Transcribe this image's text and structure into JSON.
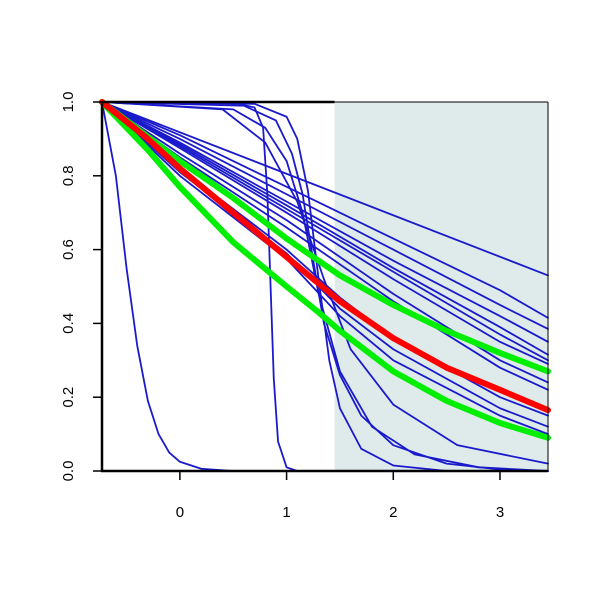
{
  "chart_data": {
    "type": "line",
    "title": "",
    "xlabel": "",
    "ylabel": "",
    "xlim": [
      -0.73,
      3.45
    ],
    "ylim": [
      0,
      1
    ],
    "x_ticks": [
      {
        "value": 0,
        "label": "0"
      },
      {
        "value": 1,
        "label": "1"
      },
      {
        "value": 2,
        "label": "2"
      },
      {
        "value": 3,
        "label": "3"
      }
    ],
    "y_ticks": [
      {
        "value": 0,
        "label": "0.0"
      },
      {
        "value": 0.2,
        "label": "0.2"
      },
      {
        "value": 0.4,
        "label": "0.4"
      },
      {
        "value": 0.6,
        "label": "0.6"
      },
      {
        "value": 0.8,
        "label": "0.8"
      },
      {
        "value": 1,
        "label": "1.0"
      }
    ],
    "shaded_region": {
      "x_from": 1.45,
      "x_to": 3.45,
      "color": "#dfebeb"
    },
    "colors": {
      "thin": "#1a1acc",
      "red": "#ff0000",
      "green": "#00ee00",
      "axis": "#000000"
    },
    "x_start": -0.73,
    "x_end": 3.45,
    "series": [
      {
        "color": "thin",
        "width": 1.8,
        "points": [
          [
            -0.73,
            1
          ],
          [
            -0.6,
            0.8
          ],
          [
            -0.5,
            0.55
          ],
          [
            -0.4,
            0.34
          ],
          [
            -0.3,
            0.19
          ],
          [
            -0.2,
            0.1
          ],
          [
            -0.1,
            0.05
          ],
          [
            0.0,
            0.025
          ],
          [
            0.2,
            0.006
          ],
          [
            0.5,
            0.0
          ],
          [
            3.45,
            0.0
          ]
        ]
      },
      {
        "color": "thin",
        "width": 1.8,
        "points": [
          [
            -0.73,
            1
          ],
          [
            0.5,
            0.998
          ],
          [
            0.7,
            0.985
          ],
          [
            0.78,
            0.93
          ],
          [
            0.82,
            0.75
          ],
          [
            0.85,
            0.5
          ],
          [
            0.88,
            0.25
          ],
          [
            0.92,
            0.08
          ],
          [
            1.0,
            0.01
          ],
          [
            1.1,
            0.0
          ],
          [
            3.45,
            0.0
          ]
        ]
      },
      {
        "color": "thin",
        "width": 1.8,
        "points": [
          [
            -0.73,
            1
          ],
          [
            0.7,
            0.995
          ],
          [
            1.0,
            0.96
          ],
          [
            1.1,
            0.9
          ],
          [
            1.2,
            0.76
          ],
          [
            1.3,
            0.52
          ],
          [
            1.4,
            0.3
          ],
          [
            1.5,
            0.17
          ],
          [
            1.7,
            0.06
          ],
          [
            2.0,
            0.015
          ],
          [
            2.5,
            0.0
          ],
          [
            3.45,
            0.0
          ]
        ]
      },
      {
        "color": "thin",
        "width": 1.8,
        "points": [
          [
            -0.73,
            1
          ],
          [
            0.6,
            0.99
          ],
          [
            0.9,
            0.95
          ],
          [
            1.05,
            0.86
          ],
          [
            1.15,
            0.75
          ],
          [
            1.25,
            0.57
          ],
          [
            1.35,
            0.4
          ],
          [
            1.5,
            0.26
          ],
          [
            1.7,
            0.15
          ],
          [
            2.0,
            0.07
          ],
          [
            2.5,
            0.02
          ],
          [
            3.0,
            0.004
          ],
          [
            3.45,
            0.0
          ]
        ]
      },
      {
        "color": "thin",
        "width": 1.8,
        "points": [
          [
            -0.73,
            1
          ],
          [
            0.5,
            0.98
          ],
          [
            0.8,
            0.93
          ],
          [
            1.0,
            0.84
          ],
          [
            1.15,
            0.7
          ],
          [
            1.3,
            0.48
          ],
          [
            1.5,
            0.27
          ],
          [
            1.8,
            0.12
          ],
          [
            2.2,
            0.045
          ],
          [
            2.8,
            0.01
          ],
          [
            3.45,
            0.0
          ]
        ]
      },
      {
        "color": "thin",
        "width": 1.8,
        "points": [
          [
            -0.73,
            1
          ],
          [
            0.4,
            0.98
          ],
          [
            0.8,
            0.89
          ],
          [
            1.1,
            0.73
          ],
          [
            1.35,
            0.52
          ],
          [
            1.6,
            0.33
          ],
          [
            2.0,
            0.18
          ],
          [
            2.6,
            0.07
          ],
          [
            3.45,
            0.02
          ]
        ]
      },
      {
        "color": "thin",
        "width": 1.8,
        "points": [
          [
            -0.73,
            1
          ],
          [
            3.45,
            0.53
          ]
        ]
      },
      {
        "color": "thin",
        "width": 1.8,
        "points": [
          [
            -0.73,
            1
          ],
          [
            0.0,
            0.91
          ],
          [
            1.0,
            0.77
          ],
          [
            2.0,
            0.63
          ],
          [
            3.0,
            0.49
          ],
          [
            3.45,
            0.415
          ]
        ]
      },
      {
        "color": "thin",
        "width": 1.8,
        "points": [
          [
            -0.73,
            1
          ],
          [
            0.0,
            0.9
          ],
          [
            1.0,
            0.75
          ],
          [
            2.0,
            0.6
          ],
          [
            3.0,
            0.45
          ],
          [
            3.45,
            0.385
          ]
        ]
      },
      {
        "color": "thin",
        "width": 1.8,
        "points": [
          [
            -0.73,
            1
          ],
          [
            0.0,
            0.89
          ],
          [
            1.0,
            0.73
          ],
          [
            2.0,
            0.57
          ],
          [
            3.0,
            0.42
          ],
          [
            3.45,
            0.35
          ]
        ]
      },
      {
        "color": "thin",
        "width": 1.8,
        "points": [
          [
            -0.73,
            1
          ],
          [
            0.0,
            0.885
          ],
          [
            1.0,
            0.72
          ],
          [
            2.0,
            0.55
          ],
          [
            3.0,
            0.39
          ],
          [
            3.45,
            0.315
          ]
        ]
      },
      {
        "color": "thin",
        "width": 1.8,
        "points": [
          [
            -0.73,
            1
          ],
          [
            0.0,
            0.88
          ],
          [
            1.0,
            0.71
          ],
          [
            2.0,
            0.54
          ],
          [
            3.0,
            0.37
          ],
          [
            3.45,
            0.3
          ]
        ]
      },
      {
        "color": "thin",
        "width": 1.8,
        "points": [
          [
            -0.73,
            1
          ],
          [
            0.0,
            0.875
          ],
          [
            1.0,
            0.7
          ],
          [
            2.0,
            0.52
          ],
          [
            3.0,
            0.35
          ],
          [
            3.45,
            0.29
          ]
        ]
      },
      {
        "color": "thin",
        "width": 1.8,
        "points": [
          [
            -0.73,
            1
          ],
          [
            0.0,
            0.86
          ],
          [
            1.0,
            0.68
          ],
          [
            2.0,
            0.48
          ],
          [
            3.0,
            0.3
          ],
          [
            3.45,
            0.24
          ]
        ]
      },
      {
        "color": "thin",
        "width": 1.8,
        "points": [
          [
            -0.73,
            1
          ],
          [
            0.0,
            0.85
          ],
          [
            1.0,
            0.66
          ],
          [
            2.0,
            0.46
          ],
          [
            3.0,
            0.28
          ],
          [
            3.45,
            0.22
          ]
        ]
      },
      {
        "color": "thin",
        "width": 1.8,
        "points": [
          [
            -0.73,
            1
          ],
          [
            0.0,
            0.82
          ],
          [
            1.0,
            0.6
          ],
          [
            1.5,
            0.47
          ],
          [
            2.0,
            0.36
          ],
          [
            3.0,
            0.2
          ],
          [
            3.45,
            0.15
          ]
        ]
      },
      {
        "color": "thin",
        "width": 1.8,
        "points": [
          [
            -0.73,
            1
          ],
          [
            0.0,
            0.81
          ],
          [
            1.0,
            0.59
          ],
          [
            1.5,
            0.44
          ],
          [
            2.0,
            0.33
          ],
          [
            3.0,
            0.17
          ],
          [
            3.45,
            0.12
          ]
        ]
      },
      {
        "color": "thin",
        "width": 1.8,
        "points": [
          [
            -0.73,
            1
          ],
          [
            0.0,
            0.8
          ],
          [
            1.0,
            0.575
          ],
          [
            1.5,
            0.42
          ],
          [
            2.0,
            0.3
          ],
          [
            3.0,
            0.15
          ],
          [
            3.45,
            0.1
          ]
        ]
      },
      {
        "color": "green",
        "width": 6,
        "points": [
          [
            -0.73,
            1
          ],
          [
            0.0,
            0.84
          ],
          [
            0.5,
            0.74
          ],
          [
            1.0,
            0.63
          ],
          [
            1.5,
            0.53
          ],
          [
            2.0,
            0.45
          ],
          [
            2.5,
            0.38
          ],
          [
            3.0,
            0.32
          ],
          [
            3.45,
            0.27
          ]
        ]
      },
      {
        "color": "green",
        "width": 6,
        "points": [
          [
            -0.73,
            1
          ],
          [
            -0.3,
            0.87
          ],
          [
            0.0,
            0.77
          ],
          [
            0.5,
            0.62
          ],
          [
            1.0,
            0.5
          ],
          [
            1.3,
            0.43
          ],
          [
            1.5,
            0.38
          ],
          [
            2.0,
            0.27
          ],
          [
            2.5,
            0.19
          ],
          [
            3.0,
            0.13
          ],
          [
            3.45,
            0.09
          ]
        ]
      },
      {
        "color": "red",
        "width": 6,
        "points": [
          [
            -0.73,
            1
          ],
          [
            -0.3,
            0.9
          ],
          [
            0.0,
            0.82
          ],
          [
            0.5,
            0.7
          ],
          [
            1.0,
            0.58
          ],
          [
            1.5,
            0.46
          ],
          [
            2.0,
            0.36
          ],
          [
            2.5,
            0.28
          ],
          [
            3.0,
            0.22
          ],
          [
            3.45,
            0.165
          ]
        ]
      }
    ]
  }
}
